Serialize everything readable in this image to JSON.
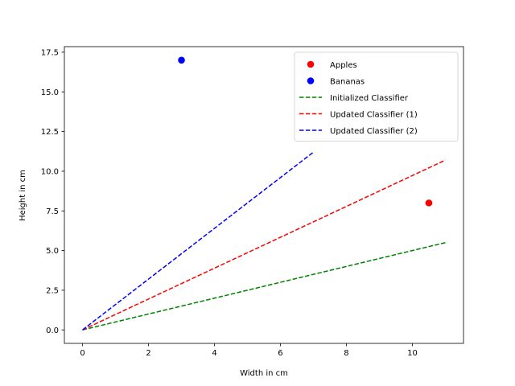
{
  "chart_data": {
    "type": "scatter",
    "title": "",
    "xlabel": "Width in cm",
    "ylabel": "Height in cm",
    "xlim": [
      -0.55,
      11.55
    ],
    "ylim": [
      -0.85,
      17.85
    ],
    "xticks": [
      0,
      2,
      4,
      6,
      8,
      10
    ],
    "yticks": [
      0.0,
      2.5,
      5.0,
      7.5,
      10.0,
      12.5,
      15.0,
      17.5
    ],
    "xtick_labels": [
      "0",
      "2",
      "4",
      "6",
      "8",
      "10"
    ],
    "ytick_labels": [
      "0.0",
      "2.5",
      "5.0",
      "7.5",
      "10.0",
      "12.5",
      "15.0",
      "17.5"
    ],
    "grid": false,
    "legend_position": "top-right",
    "points": [
      {
        "name": "Apples",
        "color": "#ff0000",
        "x": [
          10.5
        ],
        "y": [
          8.0
        ]
      },
      {
        "name": "Bananas",
        "color": "#0000ff",
        "x": [
          3.0
        ],
        "y": [
          17.0
        ]
      }
    ],
    "lines": [
      {
        "name": "Initialized Classifier",
        "color": "#008000",
        "style": "dashed",
        "x": [
          0,
          11
        ],
        "y": [
          0,
          5.5
        ]
      },
      {
        "name": "Updated Classifier (1)",
        "color": "#ff0000",
        "style": "dashed",
        "x": [
          0,
          11
        ],
        "y": [
          0,
          10.7
        ]
      },
      {
        "name": "Updated Classifier (2)",
        "color": "#0000ff",
        "style": "dashed",
        "x": [
          0,
          7
        ],
        "y": [
          0,
          11.2
        ]
      }
    ]
  }
}
